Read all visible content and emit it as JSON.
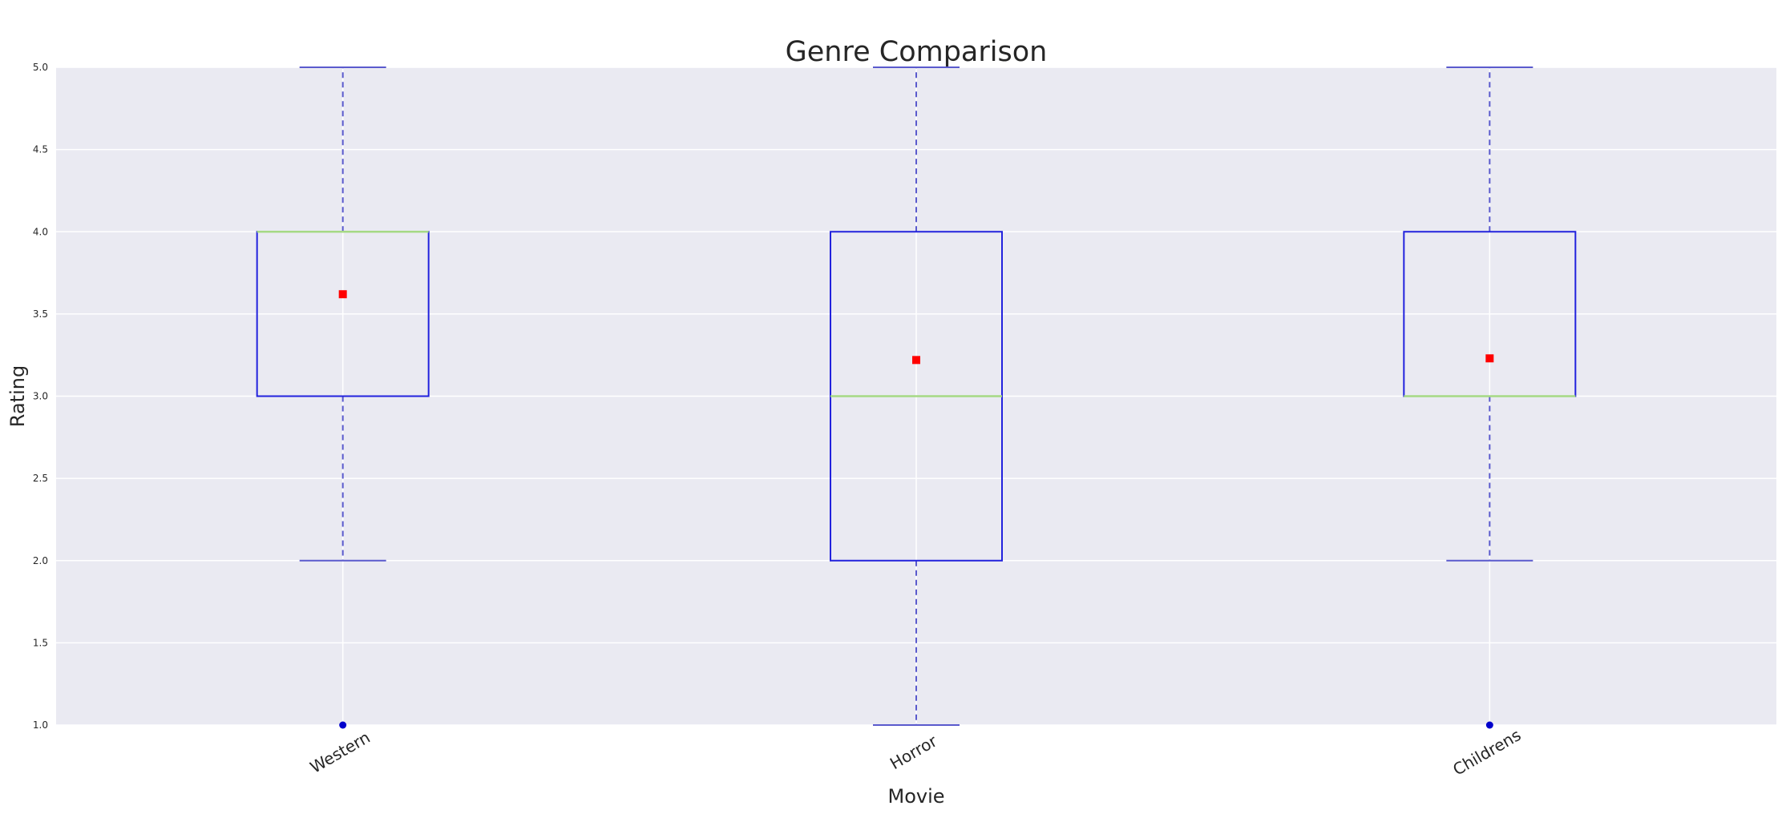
{
  "chart_data": {
    "type": "box",
    "title": "Genre Comparison",
    "xlabel": "Movie",
    "ylabel": "Rating",
    "ylim": [
      1.0,
      5.0
    ],
    "yticks": [
      "1.0",
      "1.5",
      "2.0",
      "2.5",
      "3.0",
      "3.5",
      "4.0",
      "4.5",
      "5.0"
    ],
    "grid": true,
    "categories": [
      "Western",
      "Horror",
      "Childrens"
    ],
    "boxes": [
      {
        "category": "Western",
        "whisker_low": 2.0,
        "q1": 3.0,
        "median": 4.0,
        "q3": 4.0,
        "whisker_high": 5.0,
        "mean": 3.62,
        "outliers": [
          1.0
        ]
      },
      {
        "category": "Horror",
        "whisker_low": 1.0,
        "q1": 2.0,
        "median": 3.0,
        "q3": 4.0,
        "whisker_high": 5.0,
        "mean": 3.22,
        "outliers": []
      },
      {
        "category": "Childrens",
        "whisker_low": 2.0,
        "q1": 3.0,
        "median": 3.0,
        "q3": 4.0,
        "whisker_high": 5.0,
        "mean": 3.23,
        "outliers": [
          1.0
        ]
      }
    ],
    "colors": {
      "background": "#eaeaf2",
      "grid": "#ffffff",
      "box": "#2222dd",
      "whisker": "#5a5acd",
      "median": "#a6d985",
      "mean": "#ff0000",
      "outlier": "#0000cc"
    }
  }
}
